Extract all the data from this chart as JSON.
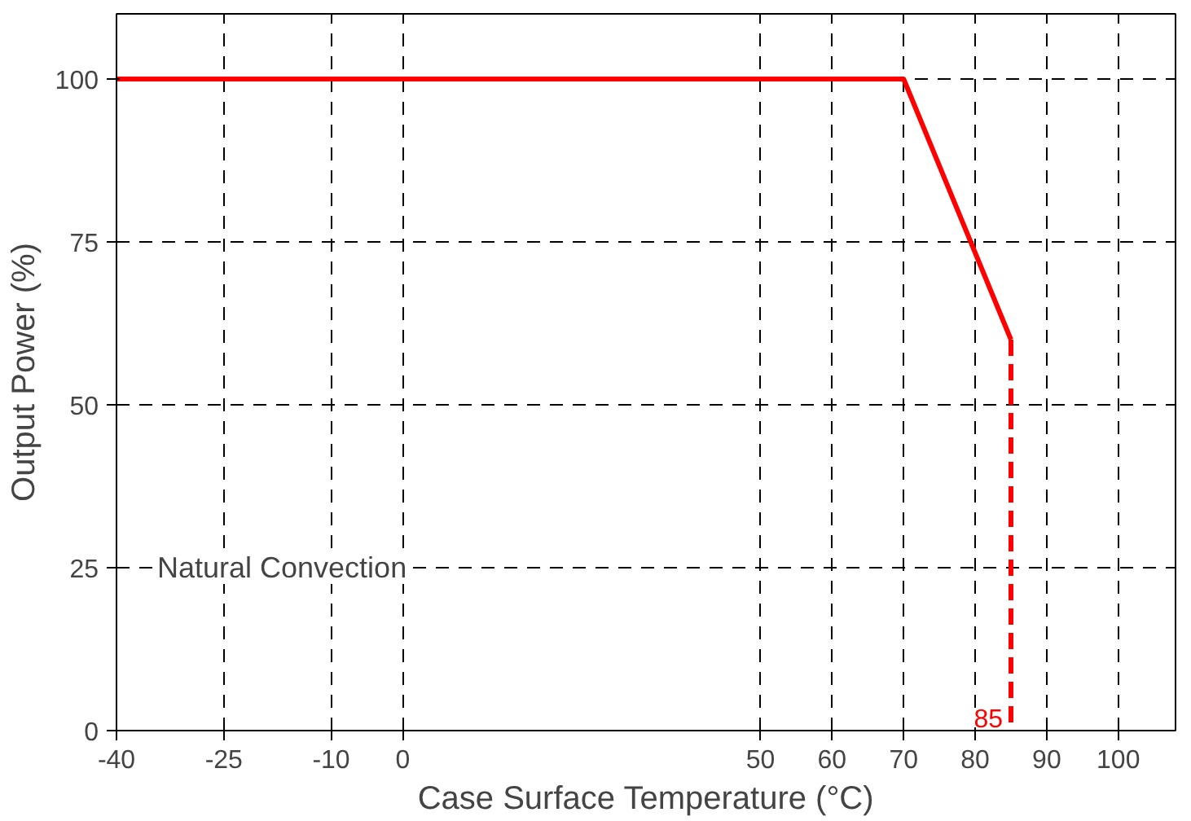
{
  "chart_data": {
    "type": "line",
    "xlabel": "Case Surface Temperature (°C)",
    "ylabel": "Output Power (%)",
    "xlim": [
      -40,
      108
    ],
    "ylim": [
      0,
      110
    ],
    "xticks": [
      -40,
      -25,
      -10,
      0,
      50,
      60,
      70,
      80,
      90,
      100
    ],
    "yticks": [
      0,
      25,
      50,
      75,
      100
    ],
    "grid": true,
    "series": [
      {
        "color": "#ff0000",
        "x": [
          -40,
          70,
          85
        ],
        "values": [
          100,
          100,
          60
        ],
        "line_style": "solid"
      },
      {
        "color": "#ff0000",
        "x": [
          85,
          85
        ],
        "values": [
          60,
          0
        ],
        "line_style": "dashed"
      }
    ],
    "annotations": [
      "Natural Convection",
      {
        "text": "85",
        "x": 85,
        "y": 0
      }
    ]
  }
}
